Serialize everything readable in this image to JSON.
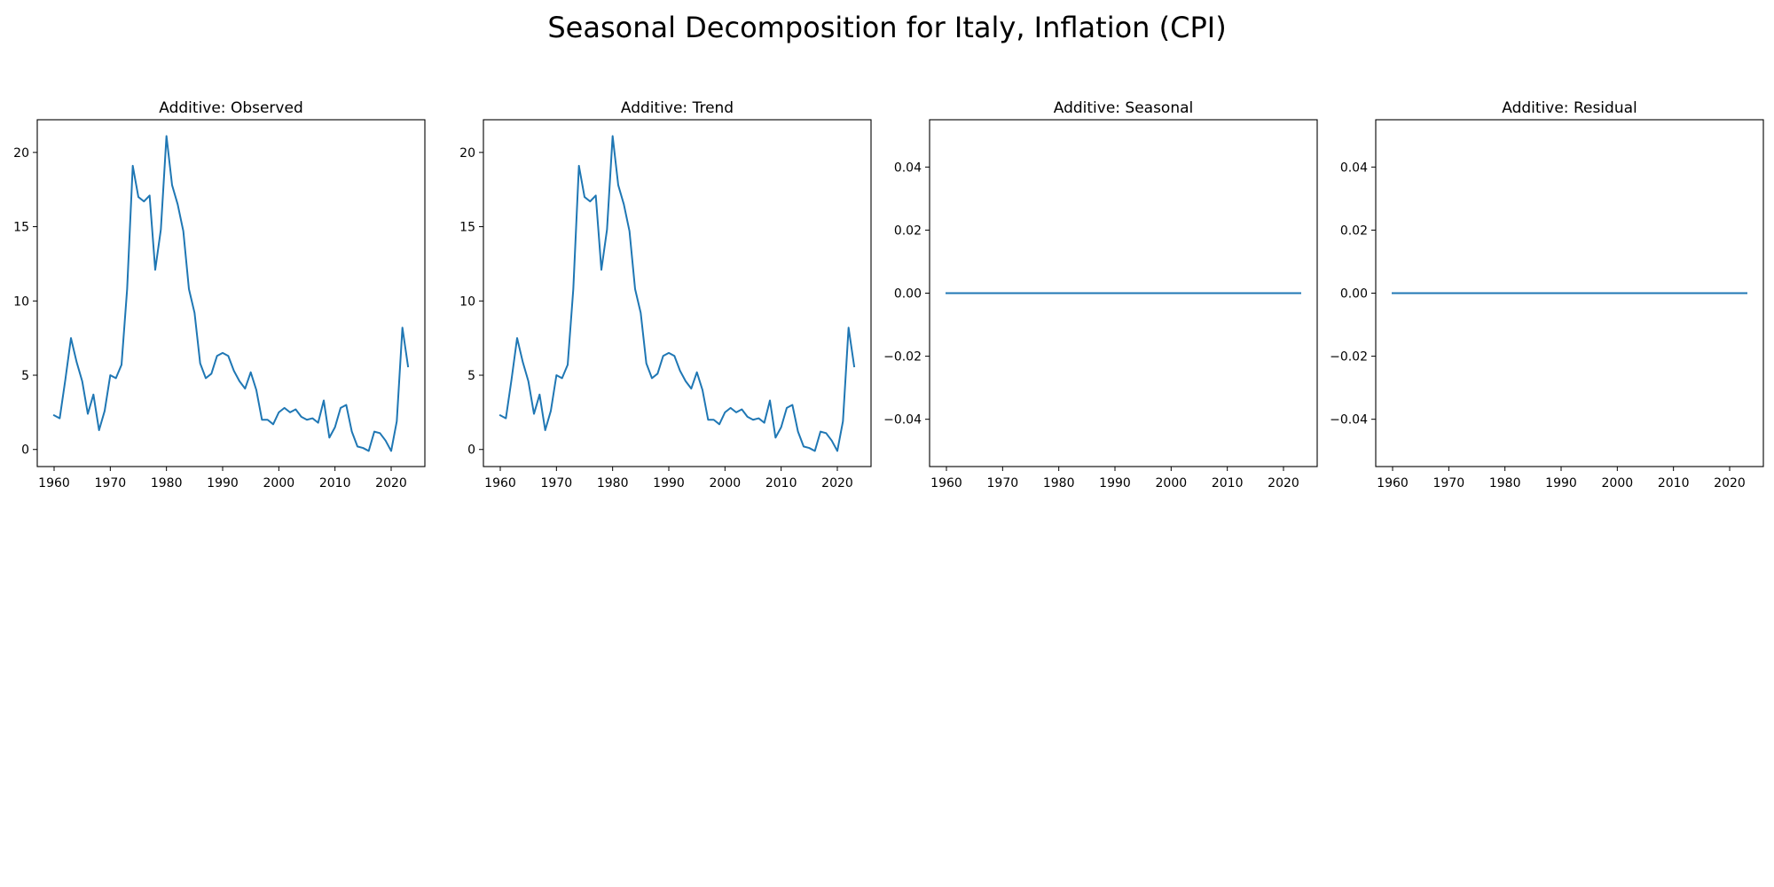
{
  "figure": {
    "title": "Seasonal Decomposition for Italy, Inflation (CPI)"
  },
  "colors": {
    "line": "#1f77b4",
    "axes": "#000000",
    "background": "#ffffff"
  },
  "chart_data": [
    {
      "type": "line",
      "title": "Additive: Observed",
      "xlabel": "",
      "ylabel": "",
      "xlim": [
        1957,
        2026
      ],
      "ylim": [
        -1.15,
        22.2
      ],
      "xticks": [
        1960,
        1970,
        1980,
        1990,
        2000,
        2010,
        2020
      ],
      "yticks": [
        0,
        5,
        10,
        15,
        20
      ],
      "ytick_format": "int",
      "grid": false,
      "series": [
        {
          "x": [
            1960,
            1961,
            1962,
            1963,
            1964,
            1965,
            1966,
            1967,
            1968,
            1969,
            1970,
            1971,
            1972,
            1973,
            1974,
            1975,
            1976,
            1977,
            1978,
            1979,
            1980,
            1981,
            1982,
            1983,
            1984,
            1985,
            1986,
            1987,
            1988,
            1989,
            1990,
            1991,
            1992,
            1993,
            1994,
            1995,
            1996,
            1997,
            1998,
            1999,
            2000,
            2001,
            2002,
            2003,
            2004,
            2005,
            2006,
            2007,
            2008,
            2009,
            2010,
            2011,
            2012,
            2013,
            2014,
            2015,
            2016,
            2017,
            2018,
            2019,
            2020,
            2021,
            2022,
            2023
          ],
          "values": [
            2.3,
            2.1,
            4.7,
            7.5,
            5.9,
            4.6,
            2.4,
            3.7,
            1.3,
            2.6,
            5.0,
            4.8,
            5.7,
            10.8,
            19.1,
            17.0,
            16.7,
            17.1,
            12.1,
            14.8,
            21.1,
            17.8,
            16.5,
            14.7,
            10.8,
            9.2,
            5.8,
            4.8,
            5.1,
            6.3,
            6.5,
            6.3,
            5.3,
            4.6,
            4.1,
            5.2,
            4.0,
            2.0,
            2.0,
            1.7,
            2.5,
            2.8,
            2.5,
            2.7,
            2.2,
            2.0,
            2.1,
            1.8,
            3.3,
            0.8,
            1.5,
            2.8,
            3.0,
            1.2,
            0.2,
            0.1,
            -0.1,
            1.2,
            1.1,
            0.6,
            -0.1,
            1.9,
            8.2,
            5.6
          ]
        }
      ]
    },
    {
      "type": "line",
      "title": "Additive: Trend",
      "xlabel": "",
      "ylabel": "",
      "xlim": [
        1957,
        2026
      ],
      "ylim": [
        -1.15,
        22.2
      ],
      "xticks": [
        1960,
        1970,
        1980,
        1990,
        2000,
        2010,
        2020
      ],
      "yticks": [
        0,
        5,
        10,
        15,
        20
      ],
      "ytick_format": "int",
      "grid": false,
      "series": [
        {
          "x": [
            1960,
            1961,
            1962,
            1963,
            1964,
            1965,
            1966,
            1967,
            1968,
            1969,
            1970,
            1971,
            1972,
            1973,
            1974,
            1975,
            1976,
            1977,
            1978,
            1979,
            1980,
            1981,
            1982,
            1983,
            1984,
            1985,
            1986,
            1987,
            1988,
            1989,
            1990,
            1991,
            1992,
            1993,
            1994,
            1995,
            1996,
            1997,
            1998,
            1999,
            2000,
            2001,
            2002,
            2003,
            2004,
            2005,
            2006,
            2007,
            2008,
            2009,
            2010,
            2011,
            2012,
            2013,
            2014,
            2015,
            2016,
            2017,
            2018,
            2019,
            2020,
            2021,
            2022,
            2023
          ],
          "values": [
            2.3,
            2.1,
            4.7,
            7.5,
            5.9,
            4.6,
            2.4,
            3.7,
            1.3,
            2.6,
            5.0,
            4.8,
            5.7,
            10.8,
            19.1,
            17.0,
            16.7,
            17.1,
            12.1,
            14.8,
            21.1,
            17.8,
            16.5,
            14.7,
            10.8,
            9.2,
            5.8,
            4.8,
            5.1,
            6.3,
            6.5,
            6.3,
            5.3,
            4.6,
            4.1,
            5.2,
            4.0,
            2.0,
            2.0,
            1.7,
            2.5,
            2.8,
            2.5,
            2.7,
            2.2,
            2.0,
            2.1,
            1.8,
            3.3,
            0.8,
            1.5,
            2.8,
            3.0,
            1.2,
            0.2,
            0.1,
            -0.1,
            1.2,
            1.1,
            0.6,
            -0.1,
            1.9,
            8.2,
            5.6
          ]
        }
      ]
    },
    {
      "type": "line",
      "title": "Additive: Seasonal",
      "xlabel": "",
      "ylabel": "",
      "xlim": [
        1957,
        2026
      ],
      "ylim": [
        -0.055,
        0.055
      ],
      "xticks": [
        1960,
        1970,
        1980,
        1990,
        2000,
        2010,
        2020
      ],
      "yticks": [
        -0.04,
        -0.02,
        0.0,
        0.02,
        0.04
      ],
      "ytick_format": "2dp",
      "grid": false,
      "series": [
        {
          "x": [
            1960,
            2023
          ],
          "values": [
            0,
            0
          ]
        }
      ]
    },
    {
      "type": "line",
      "title": "Additive: Residual",
      "xlabel": "",
      "ylabel": "",
      "xlim": [
        1957,
        2026
      ],
      "ylim": [
        -0.055,
        0.055
      ],
      "xticks": [
        1960,
        1970,
        1980,
        1990,
        2000,
        2010,
        2020
      ],
      "yticks": [
        -0.04,
        -0.02,
        0.0,
        0.02,
        0.04
      ],
      "ytick_format": "2dp",
      "grid": false,
      "series": [
        {
          "x": [
            1960,
            2023
          ],
          "values": [
            0,
            0
          ]
        }
      ]
    }
  ]
}
